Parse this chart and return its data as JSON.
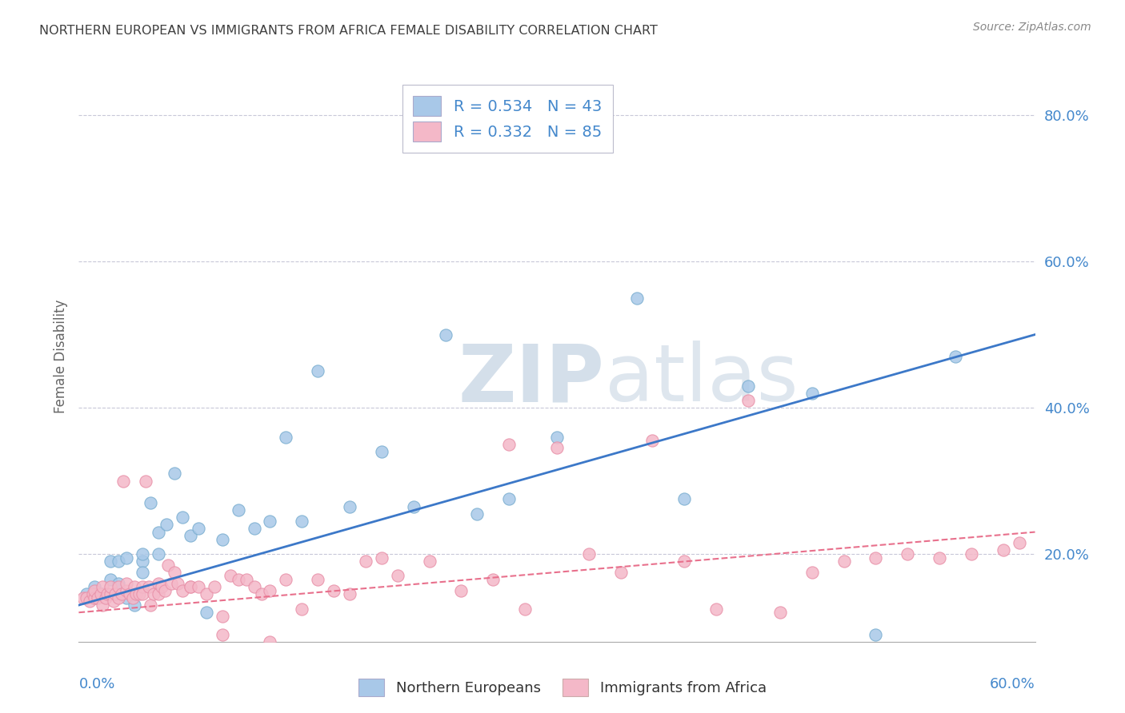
{
  "title": "NORTHERN EUROPEAN VS IMMIGRANTS FROM AFRICA FEMALE DISABILITY CORRELATION CHART",
  "source": "Source: ZipAtlas.com",
  "ylabel": "Female Disability",
  "xlim": [
    0.0,
    0.6
  ],
  "ylim": [
    0.08,
    0.86
  ],
  "legend_R1": "R = 0.534",
  "legend_N1": "N = 43",
  "legend_R2": "R = 0.332",
  "legend_N2": "N = 85",
  "blue_color": "#a8c8e8",
  "blue_edge_color": "#7aaed0",
  "pink_color": "#f4b8c8",
  "pink_edge_color": "#e890a8",
  "blue_line_color": "#3c78c8",
  "pink_line_color": "#e8708c",
  "background_color": "#ffffff",
  "grid_color": "#c8c8d8",
  "title_color": "#404040",
  "axis_label_color": "#4488cc",
  "watermark_color": "#d0dce8",
  "blue_scatter_x": [
    0.005,
    0.01,
    0.01,
    0.015,
    0.02,
    0.02,
    0.025,
    0.025,
    0.03,
    0.03,
    0.035,
    0.04,
    0.04,
    0.04,
    0.045,
    0.05,
    0.05,
    0.055,
    0.06,
    0.065,
    0.07,
    0.075,
    0.08,
    0.09,
    0.1,
    0.11,
    0.12,
    0.13,
    0.14,
    0.15,
    0.17,
    0.19,
    0.21,
    0.23,
    0.25,
    0.27,
    0.3,
    0.35,
    0.42,
    0.5,
    0.55,
    0.38,
    0.46
  ],
  "blue_scatter_y": [
    0.145,
    0.14,
    0.155,
    0.145,
    0.165,
    0.19,
    0.16,
    0.19,
    0.195,
    0.14,
    0.13,
    0.19,
    0.175,
    0.2,
    0.27,
    0.23,
    0.2,
    0.24,
    0.31,
    0.25,
    0.225,
    0.235,
    0.12,
    0.22,
    0.26,
    0.235,
    0.245,
    0.36,
    0.245,
    0.45,
    0.265,
    0.34,
    0.265,
    0.5,
    0.255,
    0.275,
    0.36,
    0.55,
    0.43,
    0.09,
    0.47,
    0.275,
    0.42
  ],
  "pink_scatter_x": [
    0.003,
    0.005,
    0.007,
    0.009,
    0.01,
    0.01,
    0.012,
    0.014,
    0.015,
    0.015,
    0.017,
    0.018,
    0.02,
    0.02,
    0.022,
    0.023,
    0.025,
    0.025,
    0.027,
    0.028,
    0.03,
    0.03,
    0.032,
    0.034,
    0.035,
    0.036,
    0.038,
    0.04,
    0.04,
    0.042,
    0.044,
    0.045,
    0.047,
    0.05,
    0.05,
    0.052,
    0.054,
    0.056,
    0.058,
    0.06,
    0.062,
    0.065,
    0.07,
    0.07,
    0.075,
    0.08,
    0.085,
    0.09,
    0.095,
    0.1,
    0.105,
    0.11,
    0.115,
    0.12,
    0.13,
    0.14,
    0.15,
    0.16,
    0.17,
    0.18,
    0.19,
    0.2,
    0.22,
    0.24,
    0.26,
    0.28,
    0.3,
    0.32,
    0.34,
    0.36,
    0.38,
    0.4,
    0.42,
    0.44,
    0.46,
    0.48,
    0.5,
    0.52,
    0.54,
    0.56,
    0.58,
    0.59,
    0.27,
    0.09,
    0.12
  ],
  "pink_scatter_y": [
    0.14,
    0.14,
    0.135,
    0.145,
    0.14,
    0.15,
    0.14,
    0.145,
    0.155,
    0.13,
    0.14,
    0.145,
    0.145,
    0.155,
    0.135,
    0.145,
    0.155,
    0.14,
    0.145,
    0.3,
    0.15,
    0.16,
    0.145,
    0.14,
    0.155,
    0.145,
    0.145,
    0.155,
    0.145,
    0.3,
    0.155,
    0.13,
    0.145,
    0.16,
    0.145,
    0.155,
    0.15,
    0.185,
    0.16,
    0.175,
    0.16,
    0.15,
    0.155,
    0.155,
    0.155,
    0.145,
    0.155,
    0.115,
    0.17,
    0.165,
    0.165,
    0.155,
    0.145,
    0.15,
    0.165,
    0.125,
    0.165,
    0.15,
    0.145,
    0.19,
    0.195,
    0.17,
    0.19,
    0.15,
    0.165,
    0.125,
    0.345,
    0.2,
    0.175,
    0.355,
    0.19,
    0.125,
    0.41,
    0.12,
    0.175,
    0.19,
    0.195,
    0.2,
    0.195,
    0.2,
    0.205,
    0.215,
    0.35,
    0.09,
    0.08
  ]
}
